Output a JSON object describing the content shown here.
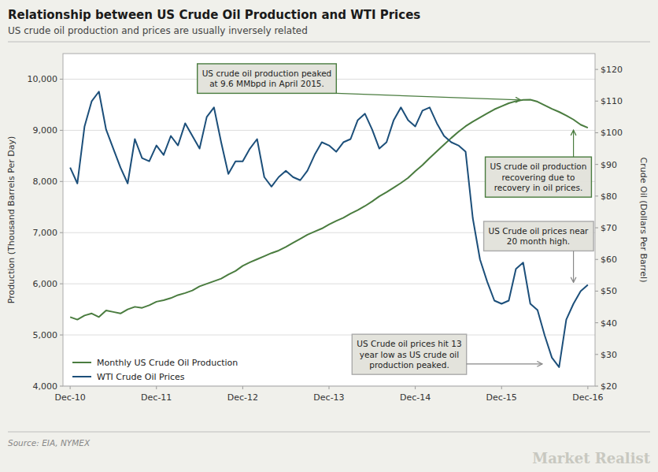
{
  "chart_data": {
    "type": "line",
    "title": "Relationship between US Crude Oil Production and WTI Prices",
    "subtitle": "US crude oil production and prices are usually inversely related",
    "source": "Source: EIA, NYMEX",
    "branding": "Market Realist",
    "ylabel": "Production (Thousand  Barrels Per Day)",
    "y2label": "Crude Oil (Dollars Per Barrel)",
    "x": [
      0,
      1,
      2,
      3,
      4,
      5,
      6,
      7,
      8,
      9,
      10,
      11,
      12,
      13,
      14,
      15,
      16,
      17,
      18,
      19,
      20,
      21,
      22,
      23,
      24,
      25,
      26,
      27,
      28,
      29,
      30,
      31,
      32,
      33,
      34,
      35,
      36,
      37,
      38,
      39,
      40,
      41,
      42,
      43,
      44,
      45,
      46,
      47,
      48,
      49,
      50,
      51,
      52,
      53,
      54,
      55,
      56,
      57,
      58,
      59,
      60,
      61,
      62,
      63,
      64,
      65,
      66,
      67,
      68,
      69,
      70,
      71,
      72
    ],
    "xlim": [
      -1,
      73
    ],
    "xticks": [
      {
        "value": 0,
        "label": "Dec-10"
      },
      {
        "value": 12,
        "label": "Dec-11"
      },
      {
        "value": 24,
        "label": "Dec-12"
      },
      {
        "value": 36,
        "label": "Dec-13"
      },
      {
        "value": 48,
        "label": "Dec-14"
      },
      {
        "value": 60,
        "label": "Dec-15"
      },
      {
        "value": 72,
        "label": "Dec-16"
      }
    ],
    "ylim": [
      4000,
      10500
    ],
    "yticks": [
      {
        "value": 4000,
        "label": "4,000"
      },
      {
        "value": 5000,
        "label": "5,000"
      },
      {
        "value": 6000,
        "label": "6,000"
      },
      {
        "value": 7000,
        "label": "7,000"
      },
      {
        "value": 8000,
        "label": "8,000"
      },
      {
        "value": 9000,
        "label": "9,000"
      },
      {
        "value": 10000,
        "label": "10,000"
      }
    ],
    "y2lim": [
      20,
      125
    ],
    "y2ticks": [
      {
        "value": 20,
        "label": "$20"
      },
      {
        "value": 30,
        "label": "$30"
      },
      {
        "value": 40,
        "label": "$40"
      },
      {
        "value": 50,
        "label": "$50"
      },
      {
        "value": 60,
        "label": "$60"
      },
      {
        "value": 70,
        "label": "$70"
      },
      {
        "value": 80,
        "label": "$80"
      },
      {
        "value": 90,
        "label": "$90"
      },
      {
        "value": 100,
        "label": "$100"
      },
      {
        "value": 110,
        "label": "$110"
      },
      {
        "value": 120,
        "label": "$120"
      }
    ],
    "grid": true,
    "legend": "lower left",
    "series": [
      {
        "name": "Monthly US Crude Oil Production",
        "color": "#4a7c3f",
        "values": [
          5350,
          5300,
          5380,
          5420,
          5350,
          5480,
          5450,
          5420,
          5500,
          5550,
          5530,
          5580,
          5650,
          5680,
          5720,
          5780,
          5820,
          5870,
          5950,
          6000,
          6050,
          6100,
          6180,
          6250,
          6350,
          6420,
          6480,
          6540,
          6600,
          6650,
          6720,
          6800,
          6880,
          6960,
          7020,
          7080,
          7160,
          7230,
          7290,
          7370,
          7440,
          7520,
          7610,
          7710,
          7790,
          7880,
          7970,
          8070,
          8200,
          8320,
          8460,
          8590,
          8720,
          8850,
          8970,
          9080,
          9170,
          9250,
          9330,
          9410,
          9470,
          9530,
          9570,
          9595,
          9600,
          9560,
          9490,
          9420,
          9360,
          9290,
          9210,
          9110,
          9050
        ]
      },
      {
        "name": "WTI Crude Oil Prices",
        "color": "#1c4f7a",
        "axis": "y2",
        "values": [
          89,
          84,
          102,
          110,
          113,
          101,
          95,
          89,
          84,
          98,
          92,
          91,
          96,
          93,
          99,
          96,
          103,
          99,
          95,
          105,
          108,
          97,
          87,
          91,
          91,
          95,
          98,
          86,
          83,
          86,
          88,
          86,
          85,
          88,
          93,
          97,
          96,
          94,
          97,
          98,
          104,
          106,
          101,
          95,
          97,
          104,
          108,
          104,
          102,
          107,
          108,
          103,
          99,
          97,
          96,
          94,
          73,
          60,
          53,
          47,
          46,
          47,
          57,
          59,
          46,
          44,
          36,
          29,
          26,
          41,
          46,
          50,
          52
        ]
      }
    ],
    "annotations": [
      {
        "text": "US crude oil production peaked\nat 9.6 MMbpd in April 2015.",
        "x": 63,
        "y": 9590
      },
      {
        "text": "US crude oil production\nrecovering due to\nrecovery in oil prices.",
        "x": 70,
        "y": 9050
      },
      {
        "text": "US Crude oil prices hit 13\nyear low as US crude oil\nproduction peaked.",
        "x": 66,
        "y": 27,
        "axis": "y2"
      },
      {
        "text": "US Crude oil prices near\n20 month high.",
        "x": 70,
        "y": 52,
        "axis": "y2"
      }
    ]
  }
}
